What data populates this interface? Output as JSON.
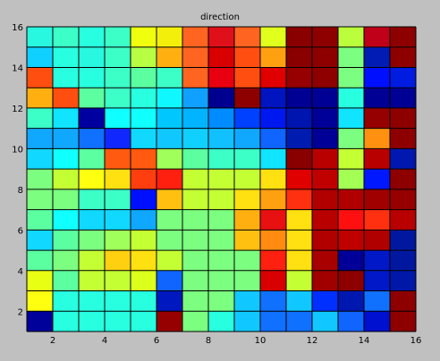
{
  "chart_data": {
    "type": "heatmap",
    "title": "direction",
    "xlim": [
      1,
      16
    ],
    "ylim": [
      1,
      16
    ],
    "xticks": [
      2,
      4,
      6,
      8,
      10,
      12,
      14,
      16
    ],
    "yticks": [
      2,
      4,
      6,
      8,
      10,
      12,
      14,
      16
    ],
    "grid": true,
    "colormap": "jet",
    "background_color": "#c0c0c0",
    "cell_colors": [
      [
        "#28f8e0",
        "#3cffc8",
        "#28ffe0",
        "#3cffc8",
        "#f0ff0e",
        "#f4ef0a",
        "#ff6420",
        "#e0101a",
        "#ff6420",
        "#e0ff1c",
        "#8a0000",
        "#8e0000",
        "#bbff3c",
        "#c00018",
        "#8e0000"
      ],
      [
        "#10d0ff",
        "#28ffe0",
        "#28f8e0",
        "#3cffc8",
        "#b8ff44",
        "#ffb010",
        "#ff6420",
        "#d80000",
        "#ff4e10",
        "#ffa010",
        "#8a0000",
        "#8e0000",
        "#7cff80",
        "#001cb4",
        "#8e0000"
      ],
      [
        "#ff4e10",
        "#28ffe0",
        "#28ffe0",
        "#3cffc8",
        "#5cffa0",
        "#3cffc8",
        "#ff6420",
        "#e80010",
        "#ff4e10",
        "#e00000",
        "#960000",
        "#8e0000",
        "#7cff80",
        "#0010ff",
        "#001ce0"
      ],
      [
        "#ffb010",
        "#ff4e10",
        "#5cffa0",
        "#3cffc8",
        "#28ffe0",
        "#10f8ff",
        "#10a0ff",
        "#000090",
        "#8e0000",
        "#0014c0",
        "#000094",
        "#000094",
        "#28ffe0",
        "#000094",
        "#000094"
      ],
      [
        "#3cffc8",
        "#10e4ff",
        "#0000a0",
        "#10ffff",
        "#10ffff",
        "#00c8ff",
        "#00b4ff",
        "#008cff",
        "#0040ff",
        "#0018f0",
        "#0014b0",
        "#000098",
        "#10e4ff",
        "#960000",
        "#8e0000"
      ],
      [
        "#10a8ff",
        "#10a8ff",
        "#1070ff",
        "#1028ff",
        "#10d8ff",
        "#10c8ff",
        "#10d0ff",
        "#10c0ff",
        "#10a8ff",
        "#1064ff",
        "#001cb0",
        "#000096",
        "#7cff80",
        "#ff9010",
        "#8e0000"
      ],
      [
        "#10d8ff",
        "#10ffff",
        "#5cffa0",
        "#ff5a10",
        "#ff5a10",
        "#a0ff5a",
        "#5cffa0",
        "#3cffc8",
        "#3cffc8",
        "#10e4ff",
        "#8a0000",
        "#b80000",
        "#c4ff34",
        "#b80000",
        "#0018b0"
      ],
      [
        "#7cff80",
        "#c4ff34",
        "#ffff10",
        "#ffe010",
        "#ff3e10",
        "#ff2010",
        "#c4ff34",
        "#c4ff34",
        "#c4ff34",
        "#ffe010",
        "#e00000",
        "#c00000",
        "#a4ff54",
        "#0018ff",
        "#8e0000"
      ],
      [
        "#7cff80",
        "#7cff80",
        "#3cffc8",
        "#3cffc8",
        "#0010ff",
        "#ffc010",
        "#c4ff34",
        "#c4ff34",
        "#ffe010",
        "#ffa010",
        "#ff3010",
        "#b00000",
        "#b00000",
        "#a00000",
        "#960000"
      ],
      [
        "#5cffa0",
        "#10ffff",
        "#10d8ff",
        "#10d8ff",
        "#10a8ff",
        "#7cff80",
        "#7cff80",
        "#7cff80",
        "#ffb010",
        "#e81010",
        "#ffe010",
        "#b80000",
        "#ff1010",
        "#ff3010",
        "#b80000"
      ],
      [
        "#10d8ff",
        "#5cffa0",
        "#7cff80",
        "#a0ff5a",
        "#c4ff34",
        "#7cff80",
        "#7cff80",
        "#7cff80",
        "#ffc010",
        "#ff8c10",
        "#ffe010",
        "#b00000",
        "#c00000",
        "#b00000",
        "#0018a0"
      ],
      [
        "#5cffa0",
        "#7cff80",
        "#c4ff34",
        "#ffd010",
        "#ffe010",
        "#c4ff34",
        "#7cff80",
        "#7cff80",
        "#7cff80",
        "#ff2010",
        "#ffe010",
        "#a80000",
        "#000098",
        "#0018c8",
        "#0018a0"
      ],
      [
        "#e8ff14",
        "#5cffa0",
        "#c4ff34",
        "#c4ff34",
        "#dcff1c",
        "#1064ff",
        "#7cff80",
        "#7cff80",
        "#7cff80",
        "#d80000",
        "#c4ff34",
        "#a00000",
        "#8e0000",
        "#0018c8",
        "#0018a8"
      ],
      [
        "#ffff10",
        "#28ffe0",
        "#28ffe0",
        "#28ffe0",
        "#28ffe0",
        "#0018c0",
        "#7cff80",
        "#7cff80",
        "#10c8ff",
        "#1070ff",
        "#10c8ff",
        "#0030ff",
        "#0018b0",
        "#1070ff",
        "#8e0000"
      ],
      [
        "#00009a",
        "#28ffe0",
        "#28ffe0",
        "#28ffe0",
        "#28ffe0",
        "#960000",
        "#7cff80",
        "#28ffe0",
        "#10c8ff",
        "#1070ff",
        "#1070ff",
        "#10c8ff",
        "#1064ff",
        "#0010d0",
        "#8e0000"
      ]
    ]
  }
}
